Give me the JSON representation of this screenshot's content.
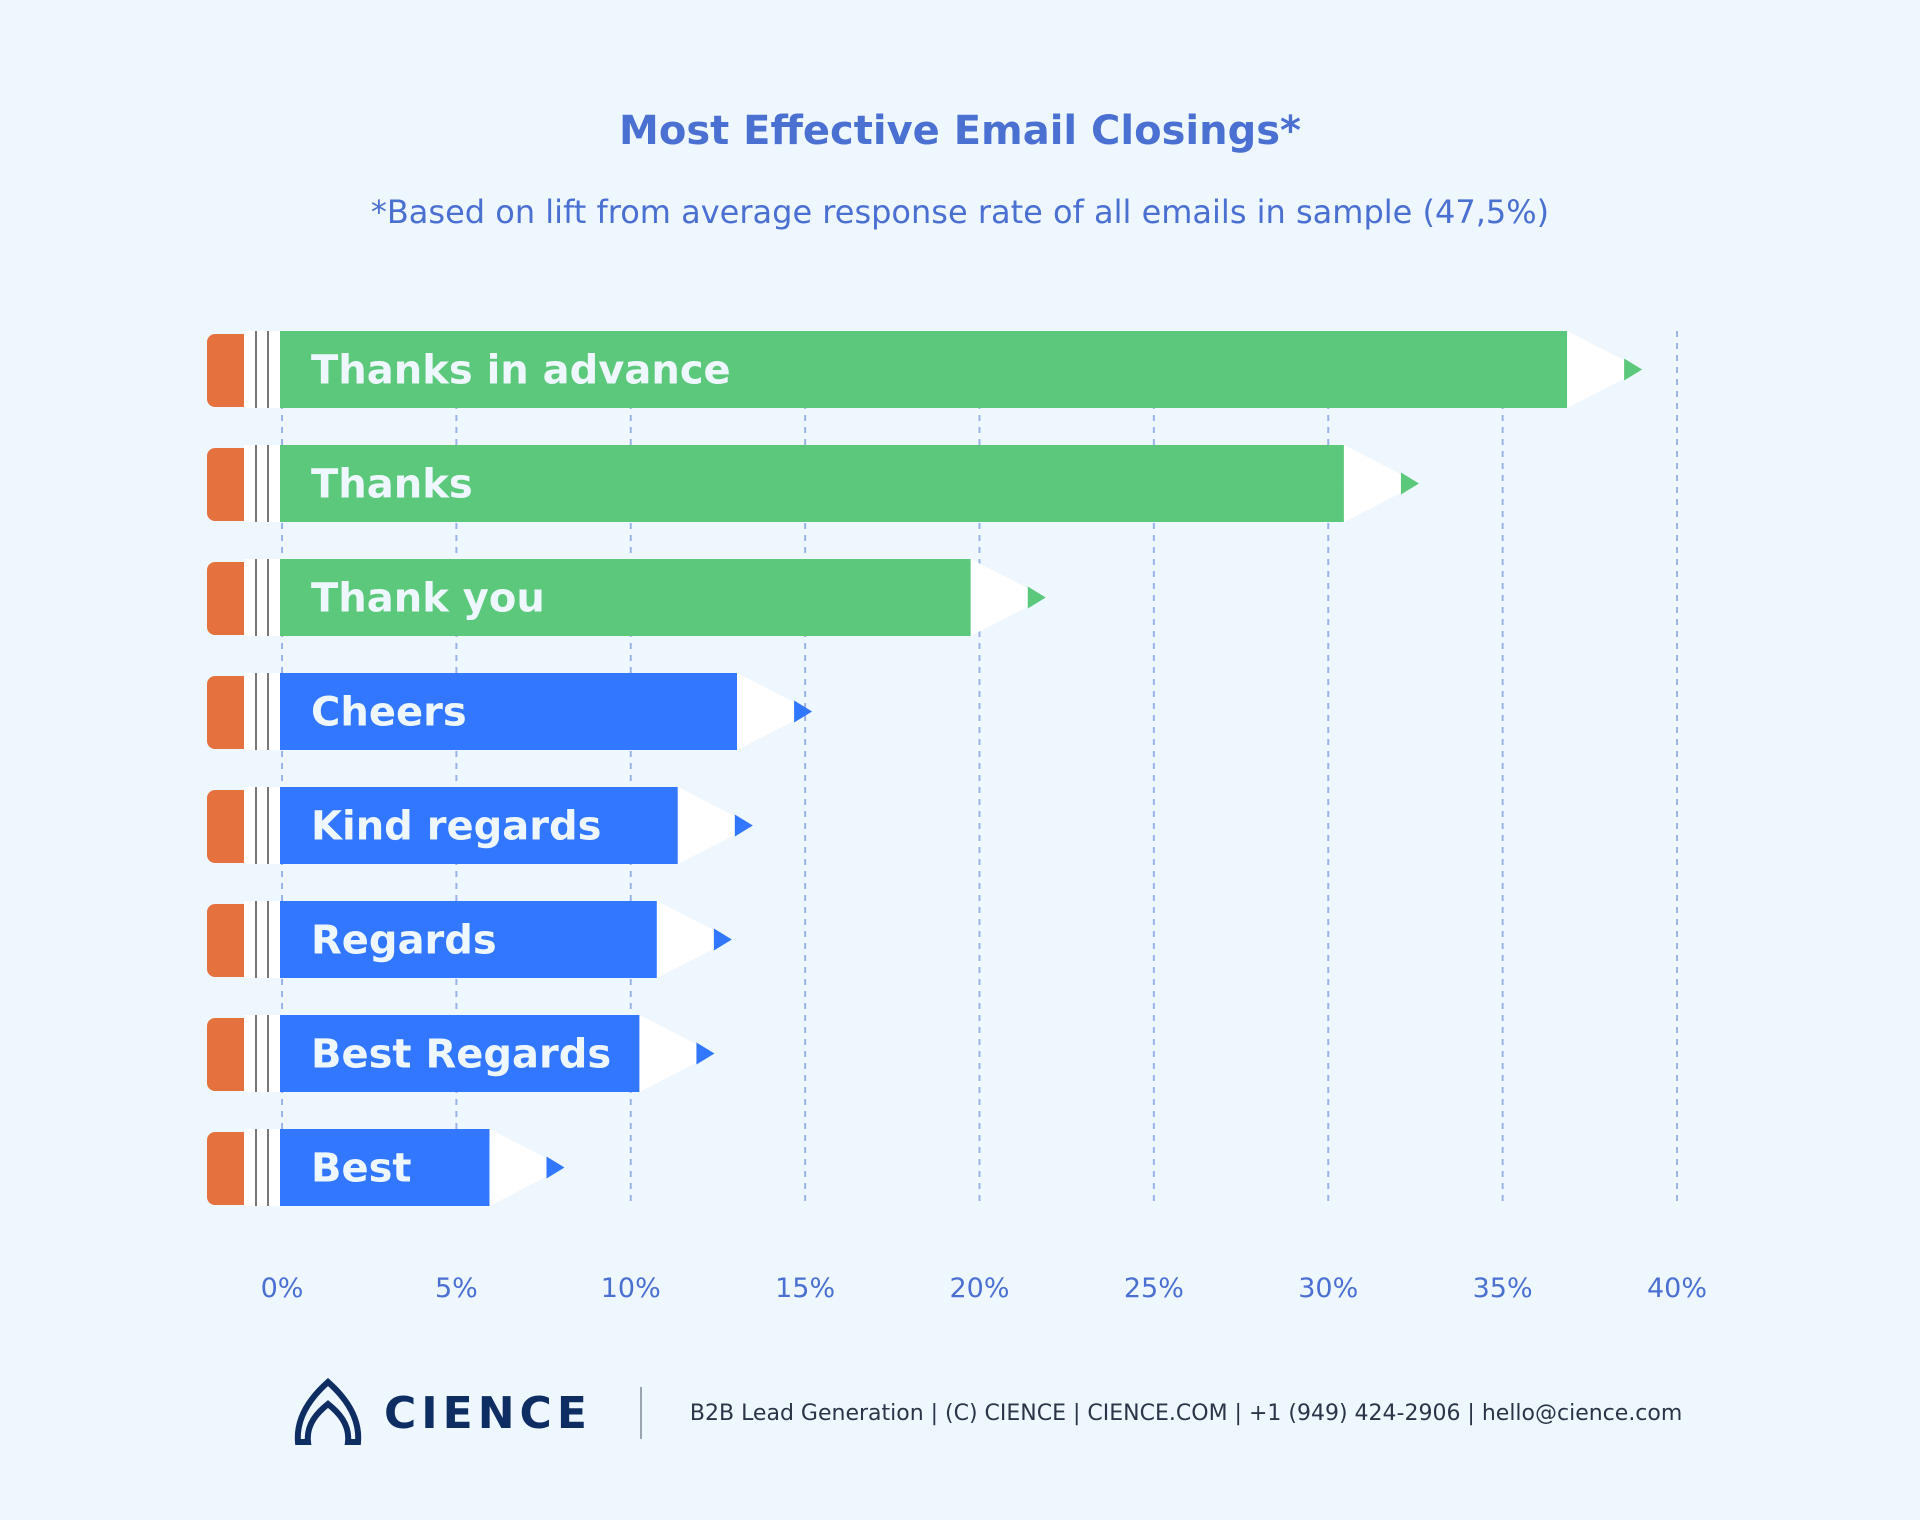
{
  "chart_data": {
    "type": "bar",
    "orientation": "horizontal",
    "title": "Most Effective Email Closings*",
    "subtitle": "*Based on lift from average response rate of all emails in sample (47,5%)",
    "categories": [
      "Thanks in advance",
      "Thanks",
      "Thank you",
      "Cheers",
      "Kind regards",
      "Regards",
      "Best Regards",
      "Best"
    ],
    "values": [
      39.0,
      32.6,
      21.9,
      15.2,
      13.5,
      12.9,
      12.4,
      8.1
    ],
    "bar_colors": [
      "#5BC87C",
      "#5BC87C",
      "#5BC87C",
      "#3177FF",
      "#3177FF",
      "#3177FF",
      "#3177FF",
      "#3177FF"
    ],
    "xlim": [
      0,
      40
    ],
    "xticks": [
      "0%",
      "5%",
      "10%",
      "15%",
      "20%",
      "25%",
      "30%",
      "35%",
      "40%"
    ],
    "grid": "vertical dashed",
    "bar_style": "pencil",
    "eraser_color": "#E5713F"
  },
  "footer": {
    "logo": "CIENCE",
    "text": "B2B Lead Generation | (C) CIENCE | CIENCE.COM | +1 (949) 424-2906 | hello@cience.com"
  }
}
